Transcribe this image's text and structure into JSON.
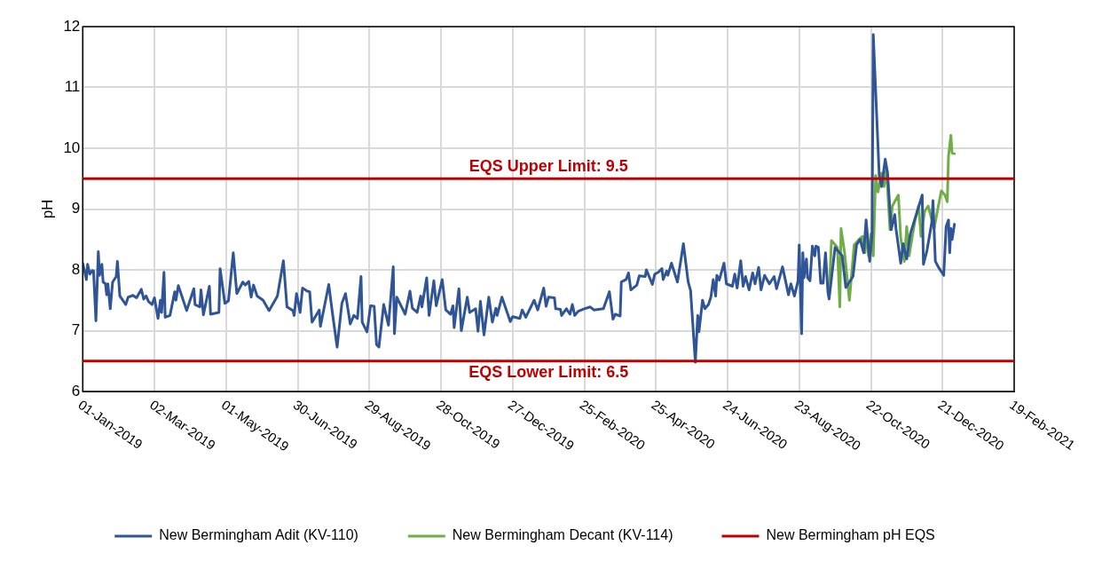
{
  "chart_data": {
    "type": "line",
    "ylabel": "pH",
    "xlim": [
      "2019-01-01",
      "2021-02-19"
    ],
    "xticks": [
      {
        "value": "2019-01-01",
        "label": "01-Jan-2019"
      },
      {
        "value": "2019-03-02",
        "label": "02-Mar-2019"
      },
      {
        "value": "2019-05-01",
        "label": "01-May-2019"
      },
      {
        "value": "2019-06-30",
        "label": "30-Jun-2019"
      },
      {
        "value": "2019-08-29",
        "label": "29-Aug-2019"
      },
      {
        "value": "2019-10-28",
        "label": "28-Oct-2019"
      },
      {
        "value": "2019-12-27",
        "label": "27-Dec-2019"
      },
      {
        "value": "2020-02-25",
        "label": "25-Feb-2020"
      },
      {
        "value": "2020-04-25",
        "label": "25-Apr-2020"
      },
      {
        "value": "2020-06-24",
        "label": "24-Jun-2020"
      },
      {
        "value": "2020-08-23",
        "label": "23-Aug-2020"
      },
      {
        "value": "2020-10-22",
        "label": "22-Oct-2020"
      },
      {
        "value": "2020-12-21",
        "label": "21-Dec-2020"
      },
      {
        "value": "2021-02-19",
        "label": "19-Feb-2021"
      }
    ],
    "ylim": [
      6,
      12
    ],
    "yticks": [
      6,
      7,
      8,
      9,
      10,
      11,
      12
    ],
    "grid": true,
    "legend": "bottom",
    "marker": "none",
    "line_style": "solid",
    "annotations": [
      "New Bermingham pH EQS"
    ],
    "ref_lines": [
      {
        "axis": "y",
        "value": 9.5,
        "label": "EQS Upper Limit: 9.5",
        "color": "#c00000"
      },
      {
        "axis": "y",
        "value": 6.5,
        "label": "EQS Lower Limit: 6.5",
        "color": "#c00000"
      }
    ],
    "series": [
      {
        "name": "New Bermingham Adit (KV-110)",
        "color": "#2f5597",
        "x": [
          "2019-01-01",
          "2019-01-04",
          "2019-01-05",
          "2019-01-07",
          "2019-01-09",
          "2019-01-10",
          "2019-01-12",
          "2019-01-14",
          "2019-01-15",
          "2019-01-17",
          "2019-01-18",
          "2019-01-20",
          "2019-01-21",
          "2019-01-22",
          "2019-01-24",
          "2019-01-26",
          "2019-01-29",
          "2019-01-30",
          "2019-02-01",
          "2019-02-06",
          "2019-02-08",
          "2019-02-12",
          "2019-02-15",
          "2019-02-19",
          "2019-02-21",
          "2019-02-23",
          "2019-02-25",
          "2019-02-28",
          "2019-03-02",
          "2019-03-05",
          "2019-03-07",
          "2019-03-08",
          "2019-03-10",
          "2019-03-11",
          "2019-03-15",
          "2019-03-19",
          "2019-03-20",
          "2019-03-22",
          "2019-03-29",
          "2019-04-04",
          "2019-04-05",
          "2019-04-09",
          "2019-04-10",
          "2019-04-12",
          "2019-04-17",
          "2019-04-18",
          "2019-04-25",
          "2019-04-26",
          "2019-04-30",
          "2019-05-03",
          "2019-05-07",
          "2019-05-10",
          "2019-05-15",
          "2019-05-17",
          "2019-05-20",
          "2019-05-22",
          "2019-05-24",
          "2019-05-27",
          "2019-06-01",
          "2019-06-06",
          "2019-06-13",
          "2019-06-18",
          "2019-06-21",
          "2019-06-26",
          "2019-06-27",
          "2019-06-29",
          "2019-07-02",
          "2019-07-04",
          "2019-07-08",
          "2019-07-10",
          "2019-07-12",
          "2019-07-18",
          "2019-07-19",
          "2019-07-26",
          "2019-07-29",
          "2019-08-02",
          "2019-08-06",
          "2019-08-09",
          "2019-08-13",
          "2019-08-16",
          "2019-08-19",
          "2019-08-22",
          "2019-08-23",
          "2019-08-27",
          "2019-08-30",
          "2019-09-02",
          "2019-09-04",
          "2019-09-06",
          "2019-09-10",
          "2019-09-14",
          "2019-09-18",
          "2019-09-19",
          "2019-09-21",
          "2019-09-28",
          "2019-10-02",
          "2019-10-04",
          "2019-10-08",
          "2019-10-11",
          "2019-10-12",
          "2019-10-16",
          "2019-10-18",
          "2019-10-22",
          "2019-10-24",
          "2019-10-29",
          "2019-11-01",
          "2019-11-05",
          "2019-11-07",
          "2019-11-08",
          "2019-11-12",
          "2019-11-14",
          "2019-11-19",
          "2019-11-21",
          "2019-11-26",
          "2019-11-28",
          "2019-11-30",
          "2019-12-03",
          "2019-12-07",
          "2019-12-10",
          "2019-12-13",
          "2019-12-14",
          "2019-12-18",
          "2019-12-25",
          "2019-12-27",
          "2020-01-02",
          "2020-01-04",
          "2020-01-07",
          "2020-01-14",
          "2020-01-17",
          "2020-01-22",
          "2020-01-24",
          "2020-01-26",
          "2020-01-31",
          "2020-02-01",
          "2020-02-05",
          "2020-02-06",
          "2020-02-10",
          "2020-02-13",
          "2020-02-15",
          "2020-02-17",
          "2020-02-20",
          "2020-02-25",
          "2020-03-01",
          "2020-03-04",
          "2020-03-12",
          "2020-03-17",
          "2020-03-20",
          "2020-03-22",
          "2020-03-26",
          "2020-03-27",
          "2020-03-31",
          "2020-04-02",
          "2020-04-04",
          "2020-04-09",
          "2020-04-11",
          "2020-04-16",
          "2020-04-17",
          "2020-04-22",
          "2020-04-24",
          "2020-04-27",
          "2020-04-30",
          "2020-05-01",
          "2020-05-04",
          "2020-05-05",
          "2020-05-08",
          "2020-05-13",
          "2020-05-18",
          "2020-05-22",
          "2020-05-24",
          "2020-05-28",
          "2020-05-30",
          "2020-05-31",
          "2020-06-03",
          "2020-06-05",
          "2020-06-08",
          "2020-06-10",
          "2020-06-12",
          "2020-06-14",
          "2020-06-15",
          "2020-06-17",
          "2020-06-21",
          "2020-06-23",
          "2020-06-28",
          "2020-06-30",
          "2020-07-02",
          "2020-07-05",
          "2020-07-07",
          "2020-07-09",
          "2020-07-12",
          "2020-07-15",
          "2020-07-17",
          "2020-07-20",
          "2020-07-22",
          "2020-07-25",
          "2020-07-29",
          "2020-08-02",
          "2020-08-04",
          "2020-08-09",
          "2020-08-14",
          "2020-08-16",
          "2020-08-19",
          "2020-08-22",
          "2020-08-23",
          "2020-08-25",
          "2020-08-26",
          "2020-08-27",
          "2020-08-29",
          "2020-08-30",
          "2020-09-01",
          "2020-09-03",
          "2020-09-05",
          "2020-09-06",
          "2020-09-08",
          "2020-09-10",
          "2020-09-12",
          "2020-09-14",
          "2020-09-16",
          "2020-09-17",
          "2020-09-22",
          "2020-09-28",
          "2020-10-01",
          "2020-10-07",
          "2020-10-10",
          "2020-10-13",
          "2020-10-16",
          "2020-10-18",
          "2020-10-21",
          "2020-10-23",
          "2020-10-24",
          "2020-10-29",
          "2020-10-31",
          "2020-11-03",
          "2020-11-05",
          "2020-11-08",
          "2020-11-11",
          "2020-11-12",
          "2020-11-16",
          "2020-11-18",
          "2020-11-21",
          "2020-11-24",
          "2020-12-04",
          "2020-12-05",
          "2020-12-08",
          "2020-12-12",
          "2020-12-13",
          "2020-12-15",
          "2020-12-18",
          "2020-12-22",
          "2020-12-24",
          "2020-12-26",
          "2020-12-27",
          "2020-12-28",
          "2020-12-29",
          "2020-12-31"
        ],
        "values": [
          8.11,
          7.84,
          8.09,
          7.93,
          7.99,
          7.98,
          7.16,
          8.3,
          7.91,
          8.09,
          7.8,
          7.77,
          7.59,
          7.77,
          7.36,
          7.8,
          7.89,
          8.14,
          7.57,
          7.43,
          7.55,
          7.58,
          7.54,
          7.68,
          7.52,
          7.57,
          7.48,
          7.43,
          7.54,
          7.2,
          7.5,
          7.3,
          7.96,
          7.22,
          7.25,
          7.64,
          7.5,
          7.74,
          7.33,
          7.69,
          7.43,
          7.39,
          7.67,
          7.26,
          7.73,
          7.27,
          7.3,
          8.02,
          7.45,
          7.49,
          8.28,
          7.61,
          7.8,
          7.75,
          7.81,
          7.55,
          7.75,
          7.57,
          7.5,
          7.33,
          7.57,
          8.15,
          7.39,
          7.33,
          7.25,
          7.61,
          7.3,
          7.7,
          7.65,
          7.64,
          7.14,
          7.34,
          7.07,
          7.76,
          7.3,
          6.73,
          7.45,
          7.61,
          7.11,
          7.25,
          7.2,
          7.89,
          7.14,
          6.98,
          7.41,
          7.4,
          6.77,
          6.73,
          7.43,
          7.09,
          8.05,
          6.95,
          7.55,
          7.27,
          7.65,
          7.37,
          7.3,
          7.57,
          7.39,
          7.87,
          7.25,
          7.82,
          7.41,
          7.84,
          7.34,
          7.27,
          7.41,
          7.05,
          7.69,
          7.0,
          7.55,
          7.3,
          7.36,
          6.99,
          7.48,
          6.93,
          7.55,
          7.14,
          7.37,
          7.25,
          7.55,
          7.15,
          7.23,
          7.2,
          7.34,
          7.22,
          7.5,
          7.34,
          7.7,
          7.4,
          7.55,
          7.54,
          7.36,
          7.35,
          7.25,
          7.36,
          7.27,
          7.43,
          7.25,
          7.32,
          7.36,
          7.39,
          7.34,
          7.36,
          7.64,
          7.19,
          7.27,
          7.24,
          7.8,
          7.84,
          7.95,
          7.67,
          7.75,
          7.9,
          7.89,
          8.0,
          7.76,
          7.93,
          7.96,
          8.02,
          7.84,
          7.98,
          7.91,
          8.11,
          7.8,
          8.43,
          7.8,
          7.66,
          6.48,
          7.25,
          6.98,
          7.5,
          7.36,
          7.43,
          7.55,
          7.84,
          7.57,
          7.91,
          7.83,
          8.11,
          7.77,
          7.73,
          7.93,
          7.7,
          8.15,
          7.73,
          7.89,
          7.67,
          7.95,
          7.77,
          8.04,
          7.67,
          7.91,
          7.77,
          7.89,
          7.69,
          8.05,
          7.59,
          7.77,
          7.57,
          7.82,
          8.41,
          6.95,
          8.28,
          7.87,
          8.18,
          7.87,
          7.82,
          8.39,
          8.23,
          8.39,
          8.37,
          7.78,
          7.78,
          8.28,
          7.64,
          7.52,
          8.37,
          8.23,
          7.71,
          7.89,
          8.41,
          8.5,
          8.28,
          8.82,
          8.14,
          8.59,
          11.87,
          9.55,
          9.37,
          9.82,
          9.59,
          8.66,
          8.91,
          8.68,
          8.11,
          8.43,
          8.18,
          8.59,
          9.23,
          8.09,
          8.32,
          8.78,
          9.14,
          8.14,
          8.03,
          7.91,
          8.71,
          8.82,
          8.28,
          8.68,
          8.5,
          8.75
        ]
      },
      {
        "name": "New Bermingham Decant (KV-114)",
        "color": "#70ad47",
        "x": [
          "2020-09-17",
          "2020-09-19",
          "2020-09-24",
          "2020-09-26",
          "2020-09-27",
          "2020-09-30",
          "2020-10-04",
          "2020-10-08",
          "2020-10-12",
          "2020-10-15",
          "2020-10-17",
          "2020-10-18",
          "2020-10-20",
          "2020-10-22",
          "2020-10-24",
          "2020-10-26",
          "2020-10-28",
          "2020-10-31",
          "2020-11-02",
          "2020-11-04",
          "2020-11-07",
          "2020-11-09",
          "2020-11-14",
          "2020-11-16",
          "2020-11-19",
          "2020-11-21",
          "2020-11-23",
          "2020-11-28",
          "2020-12-01",
          "2020-12-03",
          "2020-12-06",
          "2020-12-09",
          "2020-12-14",
          "2020-12-17",
          "2020-12-20",
          "2020-12-23",
          "2020-12-25",
          "2020-12-26",
          "2020-12-28",
          "2020-12-29",
          "2020-12-31"
        ],
        "values": [
          7.59,
          8.48,
          8.37,
          7.39,
          8.68,
          8.28,
          7.5,
          8.41,
          8.5,
          8.55,
          8.28,
          8.68,
          8.23,
          8.59,
          8.23,
          9.55,
          9.28,
          9.59,
          9.37,
          9.66,
          8.66,
          9.05,
          9.23,
          8.53,
          8.14,
          8.71,
          8.23,
          8.82,
          9.05,
          8.55,
          8.96,
          9.05,
          8.68,
          9.0,
          9.3,
          9.23,
          9.12,
          9.87,
          10.21,
          9.92,
          9.91
        ]
      }
    ]
  }
}
